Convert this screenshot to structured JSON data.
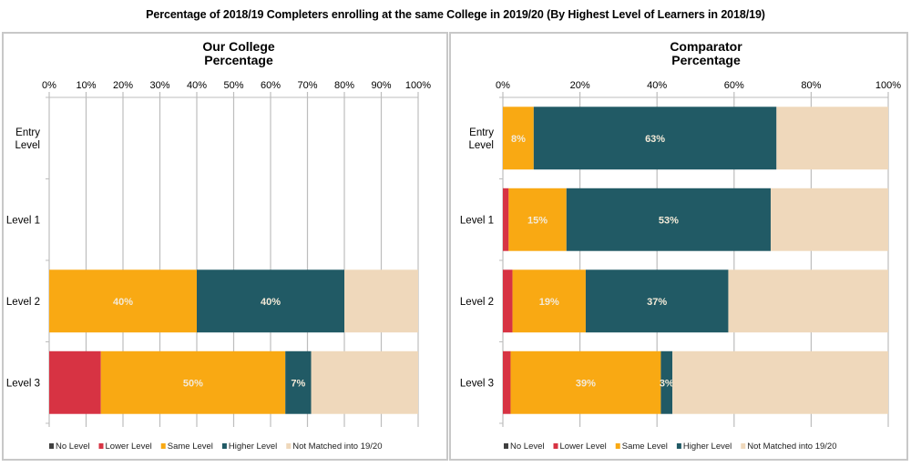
{
  "title": "Percentage of 2018/19 Completers enrolling at the same College in 2019/20 (By Highest Level of Learners in 2018/19)",
  "legend": [
    {
      "name": "No Level",
      "color": "#404040"
    },
    {
      "name": "Lower Level",
      "color": "#d73343"
    },
    {
      "name": "Same Level",
      "color": "#f9a913"
    },
    {
      "name": "Higher Level",
      "color": "#215a65"
    },
    {
      "name": "Not Matched into 19/20",
      "color": "#efd8bb"
    }
  ],
  "chart_data": [
    {
      "type": "bar",
      "orientation": "horizontal-stacked-100",
      "title": "Our College\nPercentage",
      "title_lines": [
        "Our College",
        "Percentage"
      ],
      "categories": [
        "Entry Level",
        "Level 1",
        "Level 2",
        "Level 3"
      ],
      "category_lines": [
        [
          "Entry",
          "Level"
        ],
        [
          "Level 1"
        ],
        [
          "Level 2"
        ],
        [
          "Level 3"
        ]
      ],
      "xlim": [
        0,
        100
      ],
      "x_ticks": [
        0,
        10,
        20,
        30,
        40,
        50,
        60,
        70,
        80,
        90,
        100
      ],
      "x_tick_labels": [
        "0%",
        "10%",
        "20%",
        "30%",
        "40%",
        "50%",
        "60%",
        "70%",
        "80%",
        "90%",
        "100%"
      ],
      "axis_position": "top",
      "grid": true,
      "legend_position": "bottom",
      "series": [
        {
          "name": "No Level",
          "values": [
            0,
            0,
            0,
            0
          ],
          "labels": [
            "",
            "",
            "",
            ""
          ]
        },
        {
          "name": "Lower Level",
          "values": [
            0,
            0,
            0,
            14
          ],
          "labels": [
            "",
            "",
            "",
            ""
          ]
        },
        {
          "name": "Same Level",
          "values": [
            0,
            0,
            40,
            50
          ],
          "labels": [
            "",
            "",
            "40%",
            "50%"
          ]
        },
        {
          "name": "Higher Level",
          "values": [
            0,
            0,
            40,
            7
          ],
          "labels": [
            "",
            "",
            "40%",
            "7%"
          ]
        },
        {
          "name": "Not Matched into 19/20",
          "values": [
            0,
            0,
            20,
            29
          ],
          "labels": [
            "",
            "",
            "",
            ""
          ]
        }
      ]
    },
    {
      "type": "bar",
      "orientation": "horizontal-stacked-100",
      "title": "Comparator\nPercentage",
      "title_lines": [
        "Comparator",
        "Percentage"
      ],
      "categories": [
        "Entry Level",
        "Level 1",
        "Level 2",
        "Level 3"
      ],
      "category_lines": [
        [
          "Entry",
          "Level"
        ],
        [
          "Level 1"
        ],
        [
          "Level 2"
        ],
        [
          "Level 3"
        ]
      ],
      "xlim": [
        0,
        100
      ],
      "x_ticks": [
        0,
        20,
        40,
        60,
        80,
        100
      ],
      "x_tick_labels": [
        "0%",
        "20%",
        "40%",
        "60%",
        "80%",
        "100%"
      ],
      "axis_position": "top",
      "grid": true,
      "legend_position": "bottom",
      "series": [
        {
          "name": "No Level",
          "values": [
            0,
            0,
            0,
            0
          ],
          "labels": [
            "",
            "",
            "",
            ""
          ]
        },
        {
          "name": "Lower Level",
          "values": [
            0,
            1.5,
            2.5,
            2
          ],
          "labels": [
            "",
            "",
            "",
            ""
          ]
        },
        {
          "name": "Same Level",
          "values": [
            8,
            15,
            19,
            39
          ],
          "labels": [
            "8%",
            "15%",
            "19%",
            "39%"
          ]
        },
        {
          "name": "Higher Level",
          "values": [
            63,
            53,
            37,
            3
          ],
          "labels": [
            "63%",
            "53%",
            "37%",
            "3%"
          ]
        },
        {
          "name": "Not Matched into 19/20",
          "values": [
            29,
            30.5,
            41.5,
            56
          ],
          "labels": [
            "",
            "",
            "",
            ""
          ]
        }
      ]
    }
  ]
}
